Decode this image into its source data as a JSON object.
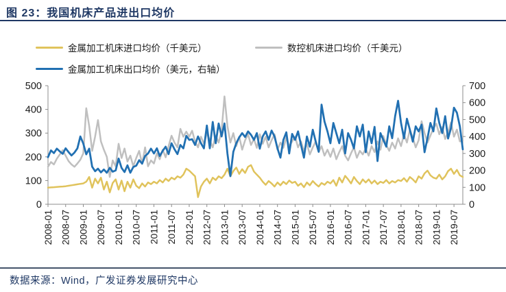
{
  "meta": {
    "title": "图 23：我国机床产品进出口均价",
    "source": "数据来源：Wind，广发证券发展研究中心"
  },
  "colors": {
    "title_navy": "#1F3864",
    "footer_rule": "#44546A",
    "axis_line": "#8c8c8c",
    "axis_text": "#1a1a1a",
    "series_yellow": "#E0C35C",
    "series_gray": "#BFBFBF",
    "series_blue": "#2170B2"
  },
  "chart_data": {
    "type": "line",
    "title": "我国机床产品进出口均价",
    "grid": false,
    "legend_position": "top",
    "x_unit": "month",
    "x_range": [
      "2008-01",
      "2019-10"
    ],
    "x_tick_labels": [
      "2008-01",
      "2008-07",
      "2009-01",
      "2009-07",
      "2010-01",
      "2010-07",
      "2011-01",
      "2011-07",
      "2012-01",
      "2012-07",
      "2013-01",
      "2013-07",
      "2014-01",
      "2014-07",
      "2015-01",
      "2015-07",
      "2016-01",
      "2016-07",
      "2017-01",
      "2017-07",
      "2018-01",
      "2018-07",
      "2019-01",
      "2019-07"
    ],
    "left_axis": {
      "min": 0,
      "max": 500,
      "ticks": [
        0,
        100,
        200,
        300,
        400,
        500
      ]
    },
    "right_axis": {
      "min": 0,
      "max": 700,
      "ticks": [
        0,
        100,
        200,
        300,
        400,
        500,
        600,
        700
      ]
    },
    "series": [
      {
        "name": "金属加工机床进口均价（千美元）",
        "axis": "left",
        "color": "#E0C35C",
        "values": [
          70,
          71,
          72,
          73,
          74,
          75,
          76,
          78,
          80,
          82,
          84,
          86,
          88,
          95,
          115,
          70,
          108,
          88,
          112,
          62,
          95,
          50,
          90,
          105,
          62,
          100,
          55,
          95,
          70,
          105,
          78,
          68,
          88,
          75,
          92,
          85,
          95,
          88,
          102,
          92,
          108,
          98,
          112,
          105,
          118,
          112,
          125,
          150,
          142,
          130,
          118,
          30,
          75,
          95,
          108,
          88,
          112,
          102,
          118,
          110,
          125,
          150,
          118,
          140,
          155,
          128,
          148,
          132,
          158,
          165,
          138,
          125,
          112,
          95,
          82,
          98,
          88,
          75,
          92,
          80,
          95,
          85,
          100,
          90,
          95,
          78,
          88,
          72,
          92,
          80,
          98,
          85,
          75,
          90,
          82,
          95,
          88,
          102,
          78,
          112,
          92,
          120,
          105,
          88,
          115,
          98,
          85,
          105,
          92,
          105,
          88,
          100,
          85,
          95,
          90,
          102,
          88,
          98,
          92,
          102,
          98,
          110,
          95,
          115,
          105,
          92,
          118,
          108,
          130,
          142,
          122,
          112,
          108,
          125,
          105,
          118,
          140,
          150,
          128,
          145,
          122,
          115
        ]
      },
      {
        "name": "数控机床进口均价（千美元）",
        "axis": "left",
        "color": "#BFBFBF",
        "values": [
          158,
          178,
          168,
          192,
          210,
          228,
          205,
          182,
          168,
          158,
          172,
          188,
          215,
          405,
          330,
          225,
          285,
          355,
          265,
          230,
          200,
          115,
          185,
          160,
          255,
          195,
          235,
          180,
          205,
          160,
          195,
          225,
          170,
          240,
          160,
          185,
          172,
          215,
          190,
          230,
          198,
          245,
          289,
          260,
          240,
          318,
          285,
          306,
          285,
          310,
          265,
          240,
          285,
          255,
          300,
          270,
          240,
          290,
          260,
          310,
          455,
          330,
          260,
          300,
          245,
          285,
          230,
          270,
          295,
          250,
          275,
          238,
          295,
          255,
          285,
          240,
          270,
          295,
          230,
          260,
          238,
          280,
          245,
          265,
          285,
          240,
          265,
          225,
          255,
          210,
          240,
          265,
          220,
          245,
          205,
          230,
          200,
          235,
          190,
          220,
          245,
          205,
          185,
          215,
          240,
          196,
          225,
          210,
          235,
          205,
          245,
          220,
          265,
          230,
          288,
          250,
          225,
          260,
          235,
          278,
          245,
          295,
          260,
          315,
          280,
          240,
          270,
          350,
          300,
          260,
          290,
          320,
          340,
          295,
          325,
          275,
          305,
          345,
          285,
          315,
          265,
          270
        ]
      },
      {
        "name": "金属加工机床出口均价（美元，右轴）",
        "axis": "right",
        "color": "#2170B2",
        "values": [
          278,
          318,
          302,
          328,
          312,
          298,
          330,
          308,
          288,
          305,
          330,
          400,
          358,
          295,
          328,
          222,
          195,
          210,
          188,
          205,
          186,
          215,
          192,
          200,
          270,
          215,
          190,
          230,
          186,
          220,
          228,
          260,
          240,
          285,
          300,
          328,
          300,
          330,
          285,
          315,
          340,
          296,
          360,
          325,
          296,
          350,
          330,
          404,
          380,
          384,
          350,
          400,
          360,
          330,
          465,
          330,
          486,
          360,
          477,
          400,
          477,
          300,
          166,
          310,
          360,
          395,
          420,
          397,
          430,
          410,
          380,
          420,
          328,
          400,
          430,
          380,
          435,
          400,
          330,
          275,
          380,
          425,
          300,
          415,
          380,
          430,
          350,
          275,
          400,
          340,
          440,
          370,
          310,
          588,
          488,
          430,
          360,
          480,
          420,
          360,
          440,
          300,
          420,
          380,
          330,
          460,
          400,
          470,
          307,
          430,
          360,
          457,
          255,
          420,
          380,
          340,
          460,
          390,
          520,
          611,
          480,
          389,
          505,
          440,
          370,
          460,
          430,
          470,
          307,
          390,
          480,
          430,
          566,
          480,
          420,
          520,
          388,
          450,
          570,
          540,
          460,
          324
        ]
      }
    ]
  }
}
